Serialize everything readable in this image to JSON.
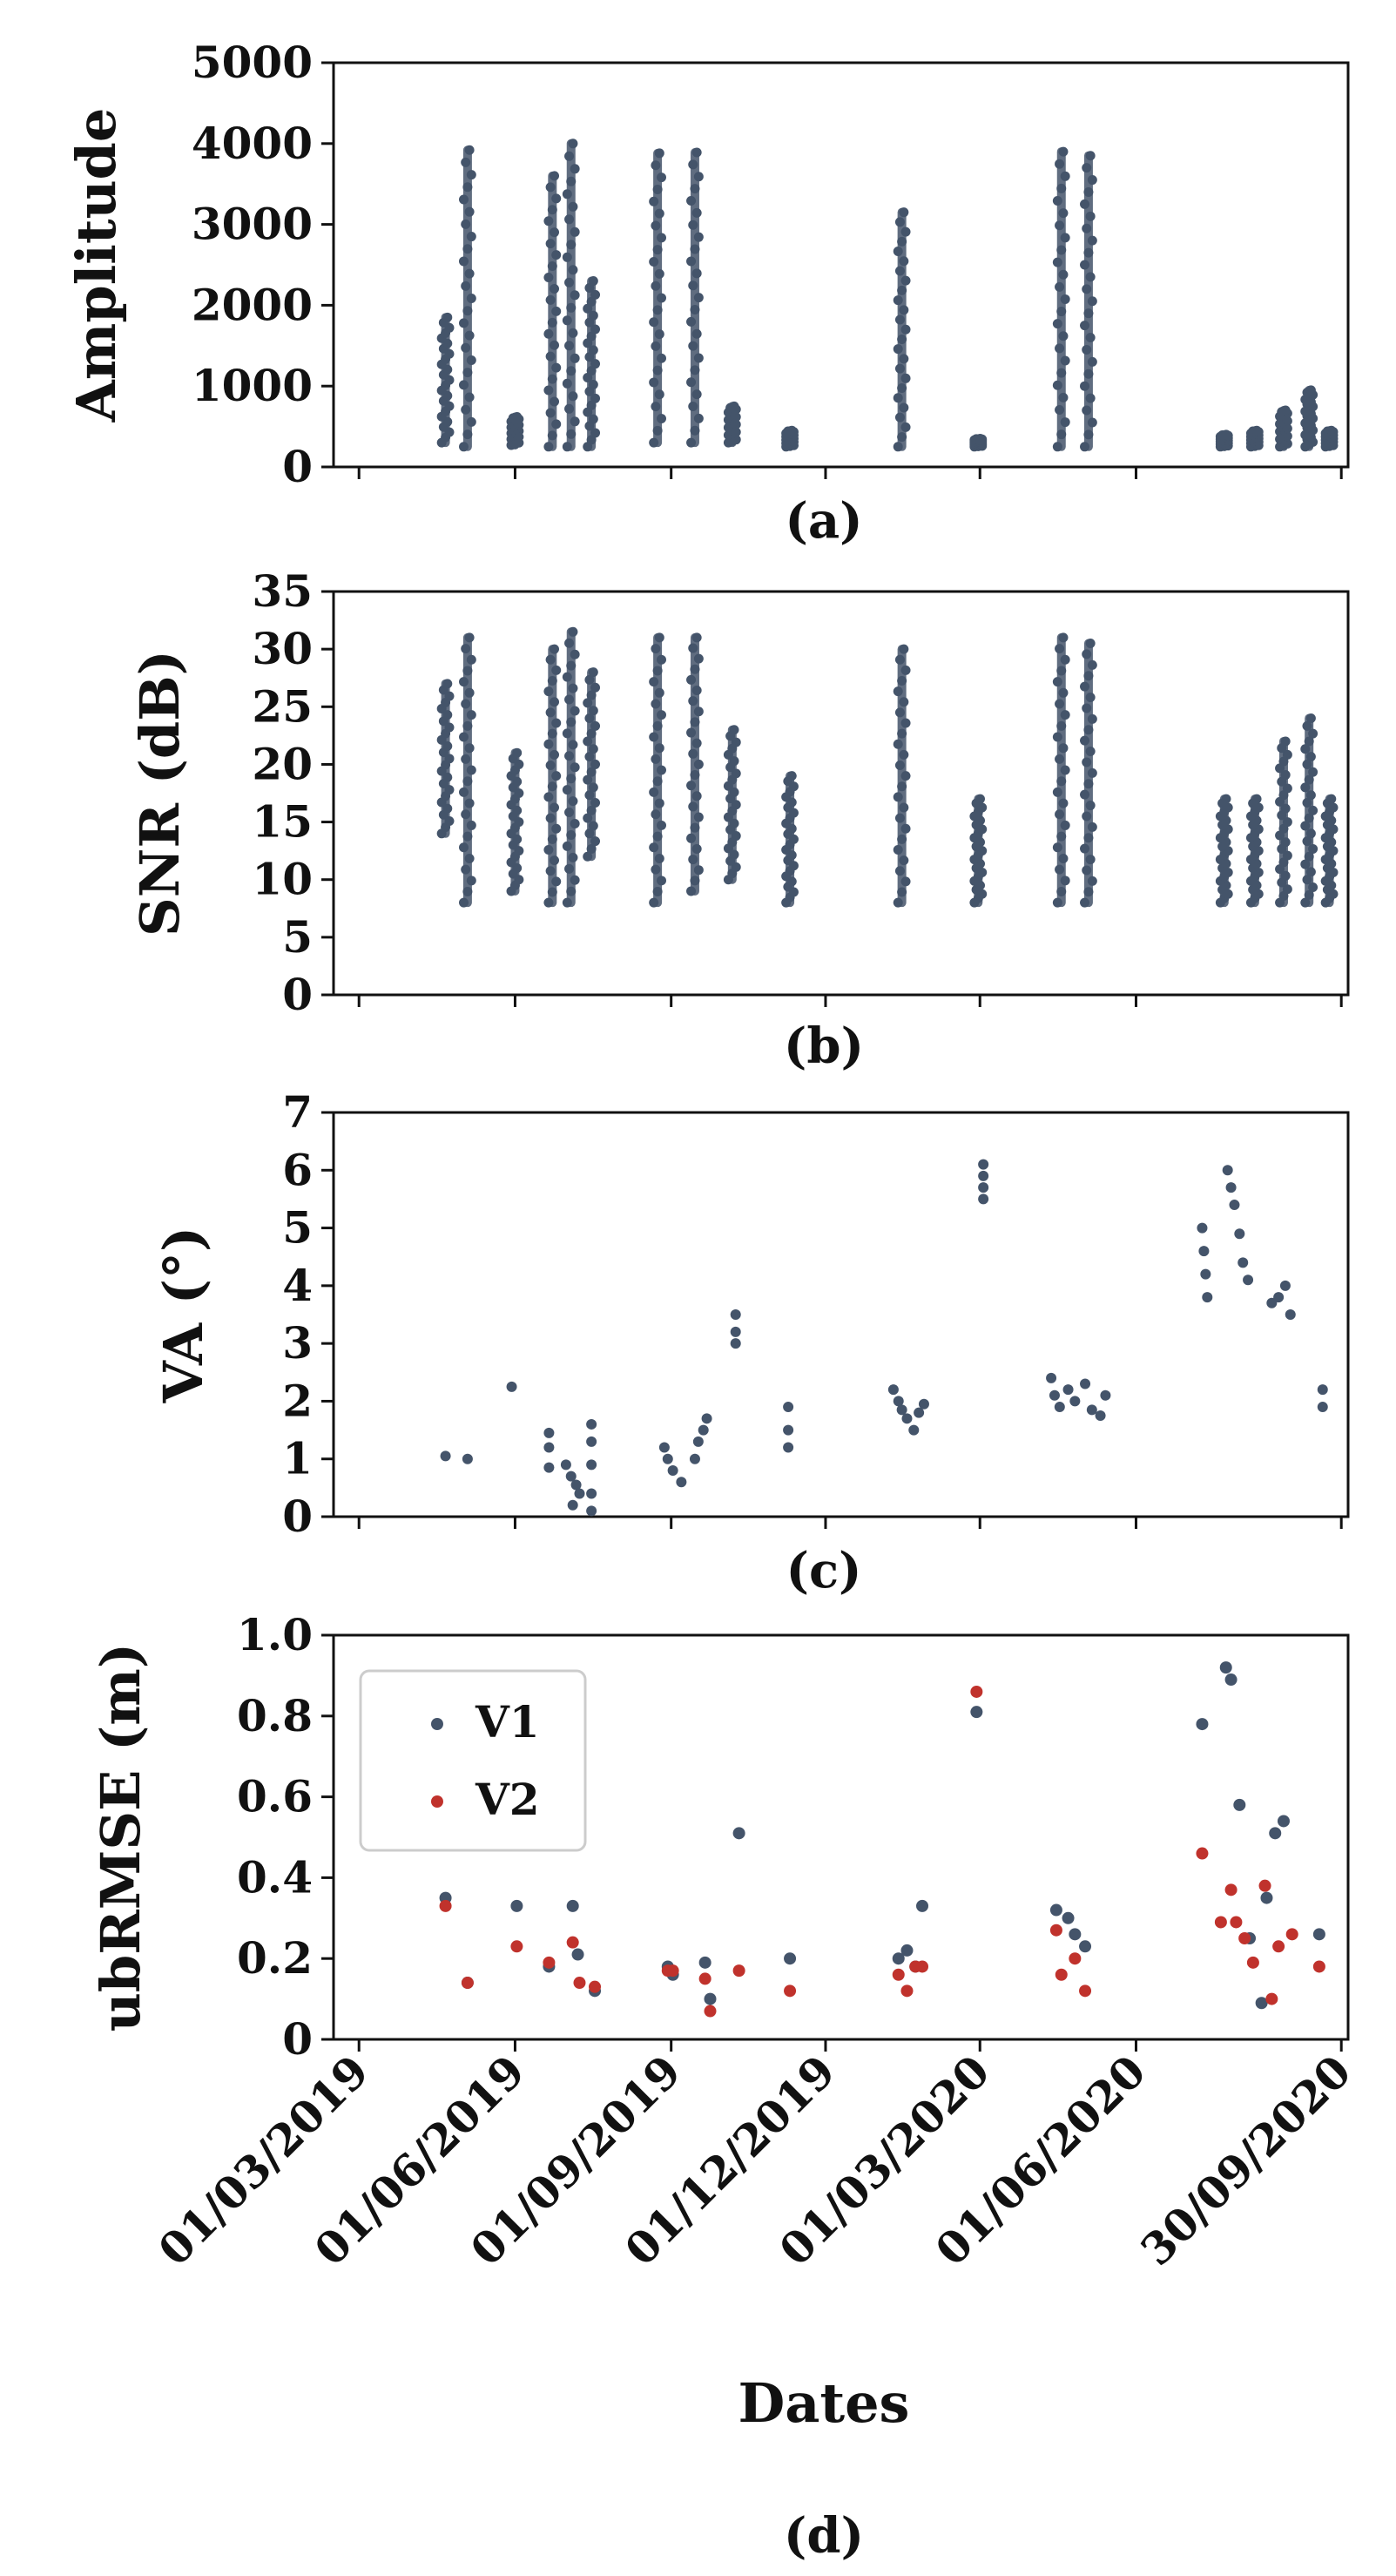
{
  "colors": {
    "v1": "#44546a",
    "v2": "#c0322c"
  },
  "shared_x": {
    "label": "Dates",
    "ticks": [
      "01/03/2019",
      "01/06/2019",
      "01/09/2019",
      "01/12/2019",
      "01/03/2020",
      "01/06/2020",
      "30/09/2020"
    ],
    "range_days": [
      -15,
      583
    ]
  },
  "chart_data": [
    {
      "type": "scatter",
      "panel": "(a)",
      "ylabel": "Amplitude",
      "ylim": [
        0,
        5000
      ],
      "yticks": [
        "0",
        "1000",
        "2000",
        "3000",
        "4000",
        "5000"
      ],
      "series": [
        {
          "name": "Amplitude",
          "clusters": [
            {
              "day": 51,
              "min": 300,
              "max": 1850
            },
            {
              "day": 64,
              "min": 250,
              "max": 3920
            },
            {
              "day": 92,
              "min": 270,
              "max": 620
            },
            {
              "day": 114,
              "min": 250,
              "max": 3600
            },
            {
              "day": 125,
              "min": 250,
              "max": 4000
            },
            {
              "day": 137,
              "min": 250,
              "max": 2300
            },
            {
              "day": 176,
              "min": 300,
              "max": 3880
            },
            {
              "day": 198,
              "min": 300,
              "max": 3890
            },
            {
              "day": 220,
              "min": 300,
              "max": 750
            },
            {
              "day": 254,
              "min": 250,
              "max": 450
            },
            {
              "day": 320,
              "min": 250,
              "max": 3150
            },
            {
              "day": 365,
              "min": 250,
              "max": 350
            },
            {
              "day": 414,
              "min": 250,
              "max": 3900
            },
            {
              "day": 430,
              "min": 250,
              "max": 3850
            },
            {
              "day": 510,
              "min": 250,
              "max": 400
            },
            {
              "day": 528,
              "min": 250,
              "max": 450
            },
            {
              "day": 545,
              "min": 250,
              "max": 700
            },
            {
              "day": 560,
              "min": 250,
              "max": 950
            },
            {
              "day": 572,
              "min": 250,
              "max": 450
            }
          ]
        }
      ]
    },
    {
      "type": "scatter",
      "panel": "(b)",
      "ylabel": "SNR (dB)",
      "ylim": [
        0,
        35
      ],
      "yticks": [
        "0",
        "5",
        "10",
        "15",
        "20",
        "25",
        "30",
        "35"
      ],
      "series": [
        {
          "name": "SNR",
          "clusters": [
            {
              "day": 51,
              "min": 14,
              "max": 27
            },
            {
              "day": 64,
              "min": 8,
              "max": 31
            },
            {
              "day": 92,
              "min": 9,
              "max": 21
            },
            {
              "day": 114,
              "min": 8,
              "max": 30
            },
            {
              "day": 125,
              "min": 8,
              "max": 31.5
            },
            {
              "day": 137,
              "min": 12,
              "max": 28
            },
            {
              "day": 176,
              "min": 8,
              "max": 31
            },
            {
              "day": 198,
              "min": 9,
              "max": 31
            },
            {
              "day": 220,
              "min": 10,
              "max": 23
            },
            {
              "day": 254,
              "min": 8,
              "max": 19
            },
            {
              "day": 320,
              "min": 8,
              "max": 30
            },
            {
              "day": 365,
              "min": 8,
              "max": 17
            },
            {
              "day": 414,
              "min": 8,
              "max": 31
            },
            {
              "day": 430,
              "min": 8,
              "max": 30.5
            },
            {
              "day": 510,
              "min": 8,
              "max": 17
            },
            {
              "day": 528,
              "min": 8,
              "max": 17
            },
            {
              "day": 545,
              "min": 8,
              "max": 22
            },
            {
              "day": 560,
              "min": 8,
              "max": 24
            },
            {
              "day": 572,
              "min": 8,
              "max": 17
            }
          ]
        }
      ]
    },
    {
      "type": "scatter",
      "panel": "(c)",
      "ylabel": "VA (°)",
      "ylim": [
        0,
        7
      ],
      "yticks": [
        "0",
        "1",
        "2",
        "3",
        "4",
        "5",
        "6",
        "7"
      ],
      "series": [
        {
          "name": "VA",
          "points": [
            [
              51,
              1.05
            ],
            [
              64,
              1.0
            ],
            [
              90,
              2.25
            ],
            [
              112,
              1.45
            ],
            [
              112,
              1.2
            ],
            [
              112,
              0.85
            ],
            [
              122,
              0.9
            ],
            [
              125,
              0.7
            ],
            [
              128,
              0.55
            ],
            [
              130,
              0.4
            ],
            [
              126,
              0.2
            ],
            [
              137,
              1.6
            ],
            [
              137,
              1.3
            ],
            [
              137,
              0.9
            ],
            [
              137,
              0.4
            ],
            [
              137,
              0.1
            ],
            [
              180,
              1.2
            ],
            [
              182,
              1.0
            ],
            [
              185,
              0.8
            ],
            [
              190,
              0.6
            ],
            [
              198,
              1.0
            ],
            [
              200,
              1.3
            ],
            [
              203,
              1.5
            ],
            [
              205,
              1.7
            ],
            [
              222,
              3.5
            ],
            [
              222,
              3.2
            ],
            [
              222,
              3.0
            ],
            [
              253,
              1.2
            ],
            [
              253,
              1.5
            ],
            [
              253,
              1.9
            ],
            [
              315,
              2.2
            ],
            [
              318,
              2.0
            ],
            [
              320,
              1.85
            ],
            [
              323,
              1.7
            ],
            [
              327,
              1.5
            ],
            [
              330,
              1.8
            ],
            [
              333,
              1.95
            ],
            [
              368,
              6.1
            ],
            [
              368,
              5.9
            ],
            [
              368,
              5.7
            ],
            [
              368,
              5.5
            ],
            [
              408,
              2.4
            ],
            [
              410,
              2.1
            ],
            [
              413,
              1.9
            ],
            [
              418,
              2.2
            ],
            [
              422,
              2.0
            ],
            [
              428,
              2.3
            ],
            [
              432,
              1.85
            ],
            [
              437,
              1.75
            ],
            [
              440,
              2.1
            ],
            [
              497,
              5.0
            ],
            [
              498,
              4.6
            ],
            [
              499,
              4.2
            ],
            [
              500,
              3.8
            ],
            [
              512,
              6.0
            ],
            [
              514,
              5.7
            ],
            [
              516,
              5.4
            ],
            [
              519,
              4.9
            ],
            [
              521,
              4.4
            ],
            [
              524,
              4.1
            ],
            [
              538,
              3.7
            ],
            [
              542,
              3.8
            ],
            [
              546,
              4.0
            ],
            [
              549,
              3.5
            ],
            [
              568,
              2.2
            ],
            [
              568,
              1.9
            ]
          ]
        }
      ]
    },
    {
      "type": "scatter",
      "panel": "(d)",
      "ylabel": "ubRMSE (m)",
      "xlabel": "Dates",
      "ylim": [
        0,
        1.0
      ],
      "yticks": [
        "0",
        "0.2",
        "0.4",
        "0.6",
        "0.8",
        "1.0"
      ],
      "legend": {
        "position": "upper-left",
        "entries": [
          "V1",
          "V2"
        ]
      },
      "series": [
        {
          "name": "V1",
          "points": [
            [
              51,
              0.35
            ],
            [
              64,
              0.14
            ],
            [
              93,
              0.33
            ],
            [
              112,
              0.18
            ],
            [
              126,
              0.33
            ],
            [
              129,
              0.21
            ],
            [
              139,
              0.12
            ],
            [
              182,
              0.18
            ],
            [
              185,
              0.16
            ],
            [
              204,
              0.19
            ],
            [
              207,
              0.1
            ],
            [
              224,
              0.51
            ],
            [
              254,
              0.2
            ],
            [
              318,
              0.2
            ],
            [
              323,
              0.22
            ],
            [
              328,
              0.18
            ],
            [
              332,
              0.33
            ],
            [
              364,
              0.81
            ],
            [
              411,
              0.32
            ],
            [
              418,
              0.3
            ],
            [
              422,
              0.26
            ],
            [
              428,
              0.23
            ],
            [
              497,
              0.78
            ],
            [
              511,
              0.92
            ],
            [
              514,
              0.89
            ],
            [
              519,
              0.58
            ],
            [
              525,
              0.25
            ],
            [
              532,
              0.09
            ],
            [
              535,
              0.35
            ],
            [
              540,
              0.51
            ],
            [
              545,
              0.54
            ],
            [
              566,
              0.26
            ]
          ]
        },
        {
          "name": "V2",
          "points": [
            [
              51,
              0.33
            ],
            [
              64,
              0.14
            ],
            [
              93,
              0.23
            ],
            [
              112,
              0.19
            ],
            [
              126,
              0.24
            ],
            [
              130,
              0.14
            ],
            [
              139,
              0.13
            ],
            [
              182,
              0.17
            ],
            [
              185,
              0.17
            ],
            [
              204,
              0.15
            ],
            [
              207,
              0.07
            ],
            [
              224,
              0.17
            ],
            [
              254,
              0.12
            ],
            [
              318,
              0.16
            ],
            [
              323,
              0.12
            ],
            [
              328,
              0.18
            ],
            [
              332,
              0.18
            ],
            [
              364,
              0.86
            ],
            [
              411,
              0.27
            ],
            [
              414,
              0.16
            ],
            [
              422,
              0.2
            ],
            [
              428,
              0.12
            ],
            [
              497,
              0.46
            ],
            [
              508,
              0.29
            ],
            [
              514,
              0.37
            ],
            [
              517,
              0.29
            ],
            [
              522,
              0.25
            ],
            [
              527,
              0.19
            ],
            [
              534,
              0.38
            ],
            [
              538,
              0.1
            ],
            [
              542,
              0.23
            ],
            [
              550,
              0.26
            ],
            [
              566,
              0.18
            ]
          ]
        }
      ]
    }
  ]
}
